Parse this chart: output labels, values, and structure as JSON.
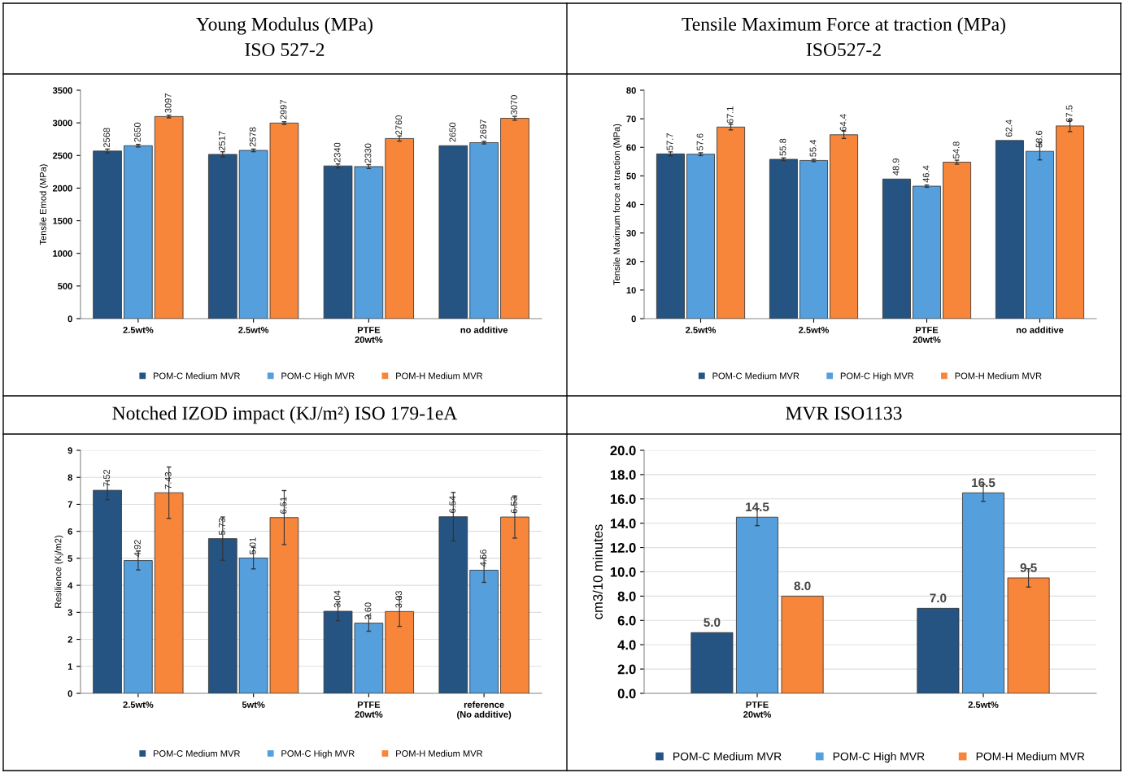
{
  "chart_data": [
    {
      "type": "bar",
      "title": "Young Modulus (MPa)\nISO 527-2",
      "ylabel": "Tensile Emod (MPa)",
      "categories": [
        "2.5wt%",
        "2.5wt%",
        "PTFE\n20wt%",
        "no additive"
      ],
      "series": [
        {
          "name": "POM-C Medium MVR",
          "color": "#255482",
          "values": [
            2568,
            2517,
            2340,
            2650
          ],
          "errors": [
            30,
            40,
            30,
            null
          ]
        },
        {
          "name": "POM-C High MVR",
          "color": "#559fdd",
          "values": [
            2650,
            2578,
            2330,
            2697
          ],
          "errors": [
            20,
            20,
            30,
            20
          ]
        },
        {
          "name": "POM-H Medium MVR",
          "color": "#f7863a",
          "values": [
            3097,
            2997,
            2760,
            3070
          ],
          "errors": [
            20,
            20,
            40,
            30
          ]
        }
      ],
      "ylim": [
        0,
        3500
      ],
      "yticks": [
        0,
        500,
        1000,
        1500,
        2000,
        2500,
        3000,
        3500
      ],
      "data_labels": true,
      "legend": "bottom",
      "grid": false
    },
    {
      "type": "bar",
      "title": "Tensile Maximum Force at traction (MPa)\nISO527-2",
      "ylabel": "Tensile Maximum force at traction (MPa)",
      "categories": [
        "2.5wt%",
        "2.5wt%",
        "PTFE\n20wt%",
        "no additive"
      ],
      "series": [
        {
          "name": "POM-C Medium MVR",
          "color": "#255482",
          "values": [
            57.7,
            55.8,
            48.9,
            62.4
          ],
          "errors": [
            0.7,
            0.5,
            null,
            null
          ]
        },
        {
          "name": "POM-C High MVR",
          "color": "#559fdd",
          "values": [
            57.6,
            55.4,
            46.4,
            58.6
          ],
          "errors": [
            0.5,
            0.4,
            0.4,
            3
          ]
        },
        {
          "name": "POM-H Medium MVR",
          "color": "#f7863a",
          "values": [
            67.1,
            64.4,
            54.8,
            67.5
          ],
          "errors": [
            1,
            1.3,
            0.7,
            2
          ]
        }
      ],
      "ylim": [
        0,
        80
      ],
      "yticks": [
        0,
        10,
        20,
        30,
        40,
        50,
        60,
        70,
        80
      ],
      "data_labels": true,
      "legend": "bottom",
      "grid": false
    },
    {
      "type": "bar",
      "title": "Notched IZOD impact (KJ/m²) ISO 179-1eA",
      "ylabel": "Resilience (Kj/m2)",
      "categories": [
        "2.5wt%",
        "5wt%",
        "PTFE\n20wt%",
        "reference\n(No additive)"
      ],
      "series": [
        {
          "name": "POM-C Medium MVR",
          "color": "#255482",
          "values": [
            7.52,
            5.73,
            3.04,
            6.54
          ],
          "errors": [
            0.35,
            0.8,
            0.35,
            0.9
          ],
          "value_labels": [
            "7.52",
            "5.73",
            "3.04",
            "6.54"
          ]
        },
        {
          "name": "POM-C High MVR",
          "color": "#559fdd",
          "values": [
            4.92,
            5.01,
            2.6,
            4.56
          ],
          "errors": [
            0.35,
            0.4,
            0.3,
            0.45
          ],
          "value_labels": [
            "4.92",
            "5.01",
            "2.60",
            "4.56"
          ]
        },
        {
          "name": "POM-H Medium MVR",
          "color": "#f7863a",
          "values": [
            7.43,
            6.51,
            3.03,
            6.53
          ],
          "errors": [
            0.95,
            1.0,
            0.55,
            0.78
          ],
          "value_labels": [
            "7.43",
            "6.51",
            "3.03",
            "6.53"
          ]
        }
      ],
      "ylim": [
        0,
        9
      ],
      "yticks": [
        0,
        1,
        2,
        3,
        4,
        5,
        6,
        7,
        8,
        9
      ],
      "legend": "bottom",
      "grid": "y"
    },
    {
      "type": "bar",
      "title": "MVR ISO1133",
      "ylabel": "cm3/10 minutes",
      "categories": [
        "PTFE\n20wt%",
        "2.5wt%"
      ],
      "series": [
        {
          "name": "POM-C Medium MVR",
          "color": "#255482",
          "values": [
            5.0,
            7.0
          ],
          "errors": [
            null,
            null
          ],
          "value_labels": [
            "5.0",
            "7.0"
          ]
        },
        {
          "name": "POM-C High MVR",
          "color": "#559fdd",
          "values": [
            14.5,
            16.5
          ],
          "errors": [
            0.7,
            0.7
          ],
          "value_labels": [
            "14.5",
            "16.5"
          ]
        },
        {
          "name": "POM-H Medium MVR",
          "color": "#f7863a",
          "values": [
            8.0,
            9.5
          ],
          "errors": [
            null,
            0.75
          ],
          "value_labels": [
            "8.0",
            "9.5"
          ]
        }
      ],
      "ylim": [
        0,
        20
      ],
      "yticks": [
        {
          "value": 0,
          "label": "0.0"
        },
        {
          "value": 2,
          "label": "2.0"
        },
        {
          "value": 4,
          "label": "4.0"
        },
        {
          "value": 6,
          "label": "6.0"
        },
        {
          "value": 8,
          "label": "8.0"
        },
        {
          "value": 10,
          "label": "10.0"
        },
        {
          "value": 12,
          "label": "12.0"
        },
        {
          "value": 14,
          "label": "14.0"
        },
        {
          "value": 16,
          "label": "16.0"
        },
        {
          "value": 18,
          "label": "18.0"
        },
        {
          "value": 20,
          "label": "20.0"
        }
      ],
      "legend": "bottom",
      "grid": "y"
    }
  ]
}
